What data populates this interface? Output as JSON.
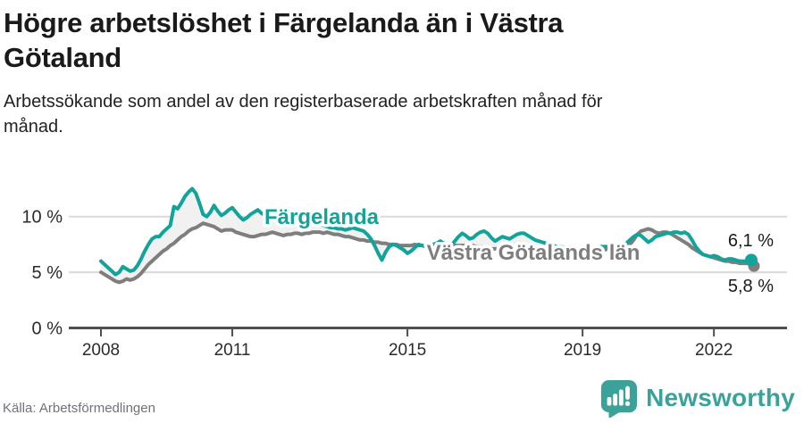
{
  "header": {
    "title_lines": [
      "Högre arbetslöshet i Färgelanda än i Västra",
      "Götaland"
    ],
    "subtitle_lines": [
      "Arbetssökande som andel av den registerbaserade arbetskraften månad för",
      "månad."
    ]
  },
  "footer": {
    "source": "Källa: Arbetsförmedlingen",
    "brand": "Newsworthy"
  },
  "colors": {
    "fargelanda": "#12a39a",
    "vastra_gotaland": "#7e7e7e",
    "band_fill": "#f1f1f1",
    "gridline": "#dadada",
    "axis": "#4f4f4f",
    "tick_label": "#2b2b2b",
    "end_label": "#1a1a1a",
    "logo_teal": "#3ba29a"
  },
  "chart_data": {
    "type": "line",
    "title": "Högre arbetslöshet i Färgelanda än i Västra Götaland",
    "subtitle": "Arbetssökande som andel av den registerbaserade arbetskraften månad för månad.",
    "frequency": "monthly",
    "x_start": "2008-01",
    "x_end": "2022-11",
    "xticks": [
      "2008",
      "2011",
      "2015",
      "2019",
      "2022"
    ],
    "yticks": [
      "0 %",
      "5 %",
      "10 %"
    ],
    "ylim": [
      0,
      13.5
    ],
    "grid": "horizontal",
    "legend_position": "inline-labels",
    "series": [
      {
        "name": "Färgelanda",
        "end_label": "6,1 %",
        "end_value": 6.1,
        "values": [
          6.0,
          5.7,
          5.4,
          5.1,
          4.8,
          5.0,
          5.5,
          5.3,
          5.1,
          5.2,
          5.6,
          6.2,
          6.9,
          7.5,
          8.0,
          8.2,
          8.2,
          8.6,
          8.9,
          9.2,
          10.9,
          10.7,
          11.2,
          11.8,
          12.2,
          12.5,
          12.1,
          11.2,
          10.2,
          10.0,
          10.4,
          11.0,
          10.5,
          10.1,
          10.3,
          10.6,
          10.8,
          10.4,
          10.0,
          9.7,
          9.9,
          10.2,
          10.4,
          10.6,
          10.3,
          10.1,
          10.0,
          10.1,
          9.8,
          9.6,
          9.5,
          9.7,
          9.9,
          10.0,
          9.9,
          9.8,
          9.9,
          9.8,
          9.7,
          9.6,
          9.4,
          9.2,
          9.1,
          9.0,
          9.0,
          8.9,
          8.9,
          8.8,
          8.9,
          9.0,
          8.9,
          8.8,
          8.7,
          8.4,
          8.0,
          7.4,
          6.7,
          6.1,
          6.8,
          7.3,
          7.5,
          7.4,
          7.2,
          7.0,
          6.7,
          6.9,
          7.2,
          7.5,
          7.4,
          7.3,
          7.2,
          7.4,
          7.6,
          7.8,
          7.6,
          7.3,
          7.4,
          7.8,
          8.2,
          8.5,
          8.3,
          8.0,
          8.1,
          8.4,
          8.6,
          8.7,
          8.5,
          8.1,
          7.8,
          8.0,
          8.2,
          8.1,
          8.0,
          8.2,
          8.4,
          8.5,
          8.5,
          8.3,
          8.1,
          7.9,
          7.8,
          7.7,
          7.6,
          7.5,
          7.4,
          7.3,
          7.3,
          7.2,
          7.2,
          7.1,
          7.1,
          7.0,
          7.0,
          7.1,
          7.1,
          7.2,
          7.2,
          7.3,
          7.3,
          7.3,
          7.2,
          7.2,
          7.3,
          7.4,
          7.6,
          7.9,
          8.2,
          8.4,
          8.3,
          8.0,
          7.7,
          7.9,
          8.2,
          8.3,
          8.4,
          8.5,
          8.5,
          8.6,
          8.6,
          8.5,
          8.6,
          8.4,
          7.9,
          7.3,
          6.9,
          6.6,
          6.5,
          6.4,
          6.5,
          6.4,
          6.2,
          6.1,
          6.2,
          6.2,
          6.1,
          6.0,
          6.0,
          6.0,
          6.1
        ]
      },
      {
        "name": "Västra Götalands län",
        "end_label": "5,8 %",
        "end_value": 5.8,
        "values": [
          5.0,
          4.8,
          4.6,
          4.4,
          4.2,
          4.1,
          4.2,
          4.4,
          4.3,
          4.4,
          4.6,
          4.9,
          5.3,
          5.7,
          6.0,
          6.3,
          6.6,
          6.9,
          7.1,
          7.4,
          7.6,
          7.9,
          8.2,
          8.4,
          8.7,
          8.9,
          9.0,
          9.2,
          9.4,
          9.3,
          9.2,
          9.1,
          8.9,
          8.7,
          8.8,
          8.8,
          8.8,
          8.6,
          8.5,
          8.4,
          8.3,
          8.2,
          8.2,
          8.3,
          8.4,
          8.4,
          8.5,
          8.6,
          8.5,
          8.4,
          8.3,
          8.4,
          8.4,
          8.5,
          8.5,
          8.4,
          8.5,
          8.5,
          8.6,
          8.6,
          8.6,
          8.5,
          8.6,
          8.5,
          8.4,
          8.4,
          8.3,
          8.2,
          8.2,
          8.1,
          8.0,
          7.9,
          7.9,
          7.8,
          7.8,
          7.7,
          7.7,
          7.6,
          7.6,
          7.5,
          7.5,
          7.5,
          7.4,
          7.4,
          7.4,
          7.4,
          7.5,
          7.4,
          7.4,
          7.4,
          7.5,
          7.5,
          7.6,
          7.5,
          7.5,
          7.4,
          7.4,
          7.4,
          7.4,
          7.4,
          7.4,
          7.3,
          7.4,
          7.3,
          7.3,
          7.2,
          7.2,
          7.1,
          7.1,
          7.1,
          7.0,
          7.0,
          7.0,
          6.9,
          6.9,
          6.9,
          6.9,
          6.8,
          6.8,
          6.8,
          6.8,
          6.8,
          6.7,
          6.7,
          6.7,
          6.6,
          6.6,
          6.7,
          6.7,
          6.7,
          6.8,
          6.8,
          6.8,
          6.9,
          6.9,
          6.9,
          7.0,
          7.0,
          7.0,
          7.1,
          7.1,
          7.1,
          7.2,
          7.2,
          7.3,
          7.5,
          7.9,
          8.4,
          8.7,
          8.8,
          8.9,
          8.8,
          8.6,
          8.5,
          8.6,
          8.6,
          8.5,
          8.3,
          8.1,
          7.9,
          7.7,
          7.5,
          7.2,
          7.0,
          6.8,
          6.6,
          6.5,
          6.4,
          6.3,
          6.2,
          6.1,
          6.0,
          6.0,
          5.9,
          5.9,
          5.8,
          5.8,
          5.8,
          5.8
        ]
      }
    ]
  }
}
